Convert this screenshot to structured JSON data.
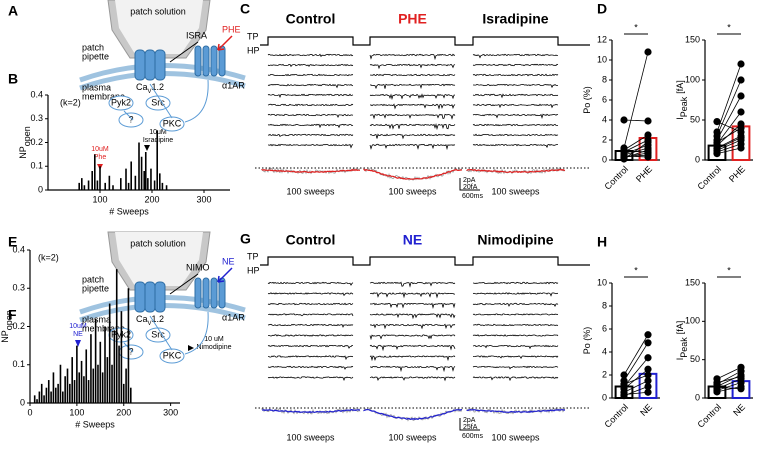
{
  "panel_labels": [
    "A",
    "B",
    "C",
    "D",
    "E",
    "F",
    "G",
    "H"
  ],
  "diagrams": [
    {
      "solution": "patch solution",
      "pipette": [
        "patch",
        "pipette"
      ],
      "membrane": [
        "plasma",
        "membrane"
      ],
      "channel": {
        "main": "Ca",
        "sub": "V",
        "suffix": "1.2"
      },
      "blocker": "ISRA",
      "agonist": "PHE",
      "receptor": "α1AR",
      "kinases": [
        "Pyk2",
        "Src",
        "?",
        "PKC"
      ]
    },
    {
      "solution": "patch solution",
      "pipette": [
        "patch",
        "pipette"
      ],
      "membrane": [
        "plasma",
        "membrane"
      ],
      "channel": {
        "main": "Ca",
        "sub": "V",
        "suffix": "1.2"
      },
      "blocker": "NIMO",
      "agonist": "NE",
      "receptor": "α1AR",
      "kinases": [
        "Pyk2",
        "Src",
        "?",
        "PKC"
      ]
    }
  ],
  "annotations": {
    "k": "(k=2)",
    "B_agonist": [
      "10uM",
      "Phe"
    ],
    "B_blocker": [
      "10uM",
      "Isradipine"
    ],
    "F_agonist": [
      "10uM",
      "NE"
    ],
    "F_blocker": [
      "10 uM",
      "Nimodipine"
    ]
  },
  "traces": [
    {
      "titles": [
        "Control",
        "PHE",
        "Isradipine"
      ],
      "tp": "TP",
      "hp": "HP",
      "sweeps": [
        "100 sweeps",
        "100 sweeps",
        "100 sweeps"
      ],
      "scale": [
        "2pA",
        "20fA",
        "600ms"
      ]
    },
    {
      "titles": [
        "Control",
        "NE",
        "Nimodipine"
      ],
      "tp": "TP",
      "hp": "HP",
      "sweeps": [
        "100 sweeps",
        "100 sweeps",
        "100 sweeps"
      ],
      "scale": [
        "2pA",
        "25fA",
        "600ms"
      ]
    }
  ],
  "chart_data": [
    {
      "type": "histogram",
      "ylabel": {
        "main": "NP",
        "sub": "open"
      },
      "xlabel": "# Sweeps",
      "x": [
        60,
        65,
        70,
        78,
        85,
        90,
        95,
        100,
        110,
        118,
        125,
        140,
        150,
        155,
        160,
        168,
        175,
        180,
        185,
        188,
        192,
        198,
        205,
        210,
        215,
        220,
        228
      ],
      "values": [
        0.03,
        0.05,
        0.02,
        0.04,
        0.08,
        0.15,
        0.04,
        0.1,
        0.03,
        0.06,
        0.02,
        0.05,
        0.09,
        0.03,
        0.12,
        0.06,
        0.2,
        0.14,
        0.08,
        0.16,
        0.05,
        0.09,
        0.04,
        0.25,
        0.07,
        0.03,
        0.02
      ],
      "color": "#000000",
      "xlim": [
        0,
        350
      ],
      "xticks": [
        100,
        200,
        300
      ],
      "ylim": [
        0,
        0.4
      ],
      "yticks": [
        0,
        0.1,
        0.2,
        0.3,
        0.4
      ]
    },
    {
      "type": "paired",
      "ylabel": {
        "main": "Po (%)"
      },
      "categories": [
        "Control",
        "PHE"
      ],
      "values": [
        0.9,
        2.2
      ],
      "colors": [
        "#000000",
        "#e02020"
      ],
      "points": [
        [
          0.2,
          0.3,
          0.5,
          0.8,
          1.0,
          1.2,
          0.4,
          0.6,
          0.9,
          4.0,
          0.1,
          0.3
        ],
        [
          1.0,
          0.5,
          1.2,
          2.0,
          2.5,
          10.8,
          0.3,
          1.5,
          0.8,
          3.9,
          1.8,
          0.7
        ]
      ],
      "significance": "*",
      "ylim": [
        0,
        12
      ],
      "yticks": [
        0,
        2,
        4,
        6,
        8,
        10,
        12
      ]
    },
    {
      "type": "paired",
      "ylabel": {
        "main": "I",
        "sub": "Peak",
        "unit": "[fA]"
      },
      "categories": [
        "Control",
        "PHE"
      ],
      "values": [
        18,
        42
      ],
      "colors": [
        "#000000",
        "#e02020"
      ],
      "points": [
        [
          10,
          12,
          15,
          18,
          20,
          25,
          30,
          35,
          48,
          8,
          14,
          22
        ],
        [
          20,
          25,
          30,
          45,
          60,
          80,
          100,
          120,
          35,
          15,
          28,
          40
        ]
      ],
      "significance": "*",
      "ylim": [
        0,
        150
      ],
      "yticks": [
        0,
        50,
        100,
        150
      ]
    },
    {
      "type": "histogram",
      "ylabel": {
        "main": "NP",
        "sub": "open"
      },
      "xlabel": "# Sweeps",
      "x": [
        10,
        15,
        20,
        25,
        30,
        35,
        40,
        45,
        50,
        55,
        60,
        65,
        70,
        75,
        80,
        85,
        90,
        95,
        100,
        105,
        110,
        115,
        120,
        125,
        130,
        135,
        140,
        145,
        150,
        155,
        160,
        165,
        170,
        175,
        180,
        185,
        190,
        195,
        200,
        205,
        210,
        215
      ],
      "values": [
        0.02,
        0.01,
        0.03,
        0.05,
        0.02,
        0.04,
        0.06,
        0.03,
        0.08,
        0.04,
        0.05,
        0.1,
        0.03,
        0.07,
        0.09,
        0.05,
        0.12,
        0.06,
        0.15,
        0.08,
        0.11,
        0.07,
        0.14,
        0.06,
        0.18,
        0.09,
        0.22,
        0.1,
        0.16,
        0.08,
        0.2,
        0.12,
        0.26,
        0.1,
        0.19,
        0.35,
        0.15,
        0.24,
        0.05,
        0.09,
        0.3,
        0.04
      ],
      "color": "#000000",
      "xlim": [
        0,
        320
      ],
      "xticks": [
        0,
        100,
        200,
        300
      ],
      "ylim": [
        0,
        0.4
      ],
      "yticks": [
        0,
        0.1,
        0.2,
        0.3,
        0.4
      ]
    },
    {
      "type": "paired",
      "ylabel": {
        "main": "Po (%)"
      },
      "categories": [
        "Control",
        "NE"
      ],
      "values": [
        1.0,
        2.1
      ],
      "colors": [
        "#000000",
        "#2020d0"
      ],
      "points": [
        [
          0.2,
          0.5,
          0.8,
          1.0,
          1.5,
          2.0,
          0.3,
          1.2
        ],
        [
          1.0,
          1.5,
          2.5,
          3.5,
          4.8,
          5.5,
          0.5,
          2.0
        ]
      ],
      "significance": "*",
      "ylim": [
        0,
        10
      ],
      "yticks": [
        0,
        2,
        4,
        6,
        8,
        10
      ]
    },
    {
      "type": "paired",
      "ylabel": {
        "main": "I",
        "sub": "Peak",
        "unit": "[fA]"
      },
      "categories": [
        "Control",
        "NE"
      ],
      "values": [
        15,
        22
      ],
      "colors": [
        "#000000",
        "#2020d0"
      ],
      "points": [
        [
          8,
          10,
          12,
          15,
          18,
          25,
          14,
          20
        ],
        [
          15,
          20,
          25,
          30,
          35,
          40,
          12,
          28
        ]
      ],
      "significance": "*",
      "ylim": [
        0,
        150
      ],
      "yticks": [
        0,
        50,
        100,
        150
      ]
    }
  ]
}
